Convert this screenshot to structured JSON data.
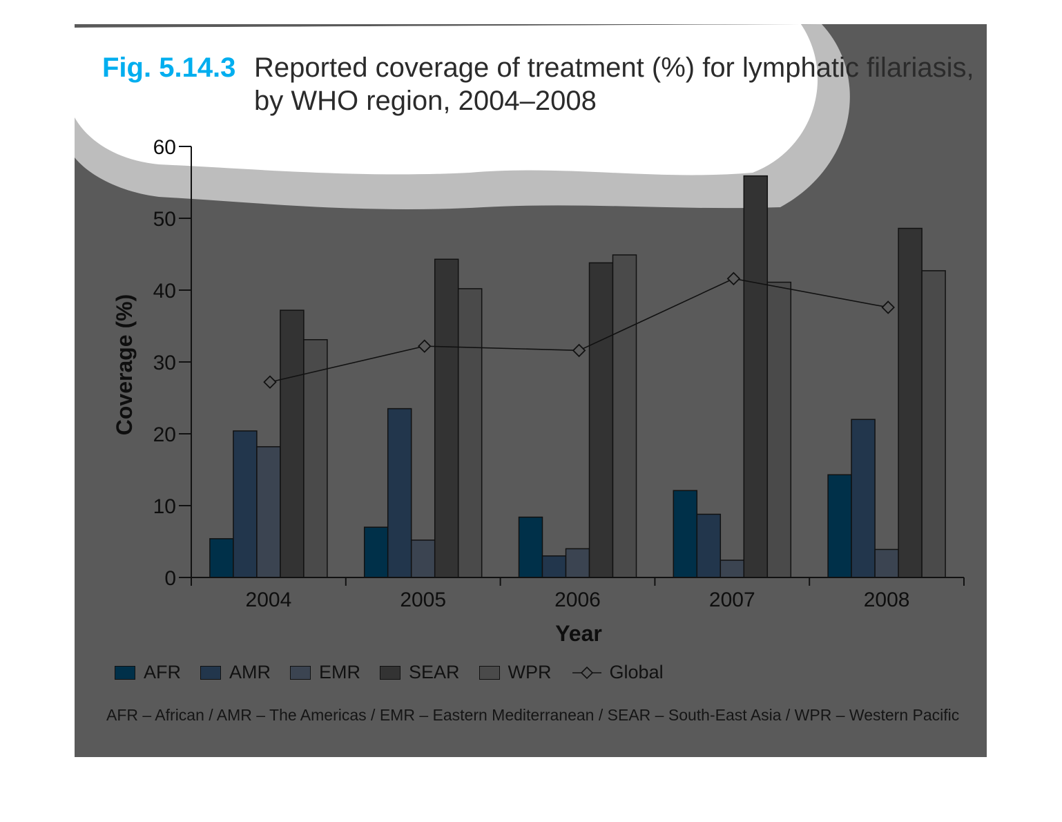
{
  "figure": {
    "label": "Fig. 5.14.3",
    "title_line1": "Reported coverage of treatment (%) for lymphatic filariasis,",
    "title_line2": "by WHO region, 2004–2008"
  },
  "colors": {
    "panel": "#5a5a5a",
    "label_accent": "#00aeef",
    "AFR": "#003049",
    "AMR": "#22364c",
    "EMR": "#3b4451",
    "SEAR": "#333333",
    "WPR": "#4a4a4a",
    "Global": "#111111"
  },
  "legend": [
    {
      "key": "AFR",
      "label": "AFR",
      "icon": "square"
    },
    {
      "key": "AMR",
      "label": "AMR",
      "icon": "square"
    },
    {
      "key": "EMR",
      "label": "EMR",
      "icon": "square"
    },
    {
      "key": "SEAR",
      "label": "SEAR",
      "icon": "square"
    },
    {
      "key": "WPR",
      "label": "WPR",
      "icon": "square"
    },
    {
      "key": "Global",
      "label": "Global",
      "icon": "line-with-diamond"
    }
  ],
  "footnote": "AFR – African / AMR – The Americas / EMR – Eastern Mediterranean / SEAR – South-East Asia / WPR – Western Pacific",
  "chart_data": {
    "type": "bar",
    "title": "Reported coverage of treatment (%) for lymphatic filariasis, by WHO region, 2004–2008",
    "xlabel": "Year",
    "ylabel": "Coverage (%)",
    "ylim": [
      0,
      60
    ],
    "yticks": [
      0,
      10,
      20,
      30,
      40,
      50,
      60
    ],
    "categories": [
      "2004",
      "2005",
      "2006",
      "2007",
      "2008"
    ],
    "series": [
      {
        "name": "AFR",
        "values": [
          5.4,
          7.0,
          8.4,
          12.1,
          14.3
        ]
      },
      {
        "name": "AMR",
        "values": [
          20.4,
          23.5,
          3.0,
          8.8,
          22.0
        ]
      },
      {
        "name": "EMR",
        "values": [
          18.2,
          5.2,
          4.0,
          2.4,
          3.9
        ]
      },
      {
        "name": "SEAR",
        "values": [
          37.2,
          44.3,
          43.8,
          55.9,
          48.6
        ]
      },
      {
        "name": "WPR",
        "values": [
          33.1,
          40.2,
          44.9,
          41.1,
          42.7
        ]
      }
    ],
    "line_series": {
      "name": "Global",
      "values": [
        27.2,
        32.2,
        31.6,
        41.6,
        37.6
      ]
    },
    "legend_position": "bottom",
    "grid": false
  }
}
